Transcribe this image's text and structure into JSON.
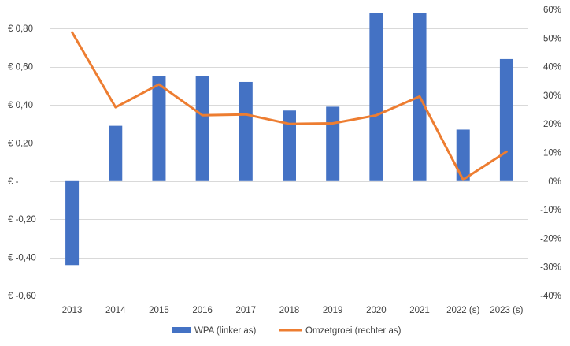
{
  "chart_data": {
    "type": "bar",
    "categories": [
      "2013",
      "2014",
      "2015",
      "2016",
      "2017",
      "2018",
      "2019",
      "2020",
      "2021",
      "2022 (s)",
      "2023 (s)"
    ],
    "series": [
      {
        "name": "WPA (linker as)",
        "type": "bar",
        "axis": "left",
        "color": "#4472C4",
        "values": [
          -0.44,
          0.29,
          0.55,
          0.55,
          0.52,
          0.37,
          0.39,
          0.88,
          0.88,
          0.27,
          0.64
        ]
      },
      {
        "name": "Omzetgroei (rechter as)",
        "type": "line",
        "axis": "right",
        "color": "#ED7D31",
        "values": [
          52,
          25.8,
          33.8,
          23,
          23.3,
          20,
          20.2,
          23,
          29.6,
          0.5,
          10.3
        ]
      }
    ],
    "y_left": {
      "ylim": [
        -0.6,
        0.9
      ],
      "ticks": [
        0.8,
        0.6,
        0.4,
        0.2,
        0,
        -0.2,
        -0.4,
        -0.6
      ],
      "tick_labels": [
        "€ 0,80",
        "€ 0,60",
        "€ 0,40",
        "€ 0,20",
        "€ -",
        "€ -0,20",
        "€ -0,40",
        "€ -0,60"
      ]
    },
    "y_right": {
      "ylim": [
        -40,
        60
      ],
      "ticks": [
        60,
        50,
        40,
        30,
        20,
        10,
        0,
        -10,
        -20,
        -30,
        -40
      ],
      "tick_labels": [
        "60%",
        "50%",
        "40%",
        "30%",
        "20%",
        "10%",
        "0%",
        "-10%",
        "-20%",
        "-30%",
        "-40%"
      ]
    },
    "grid": true,
    "legend_position": "bottom"
  }
}
